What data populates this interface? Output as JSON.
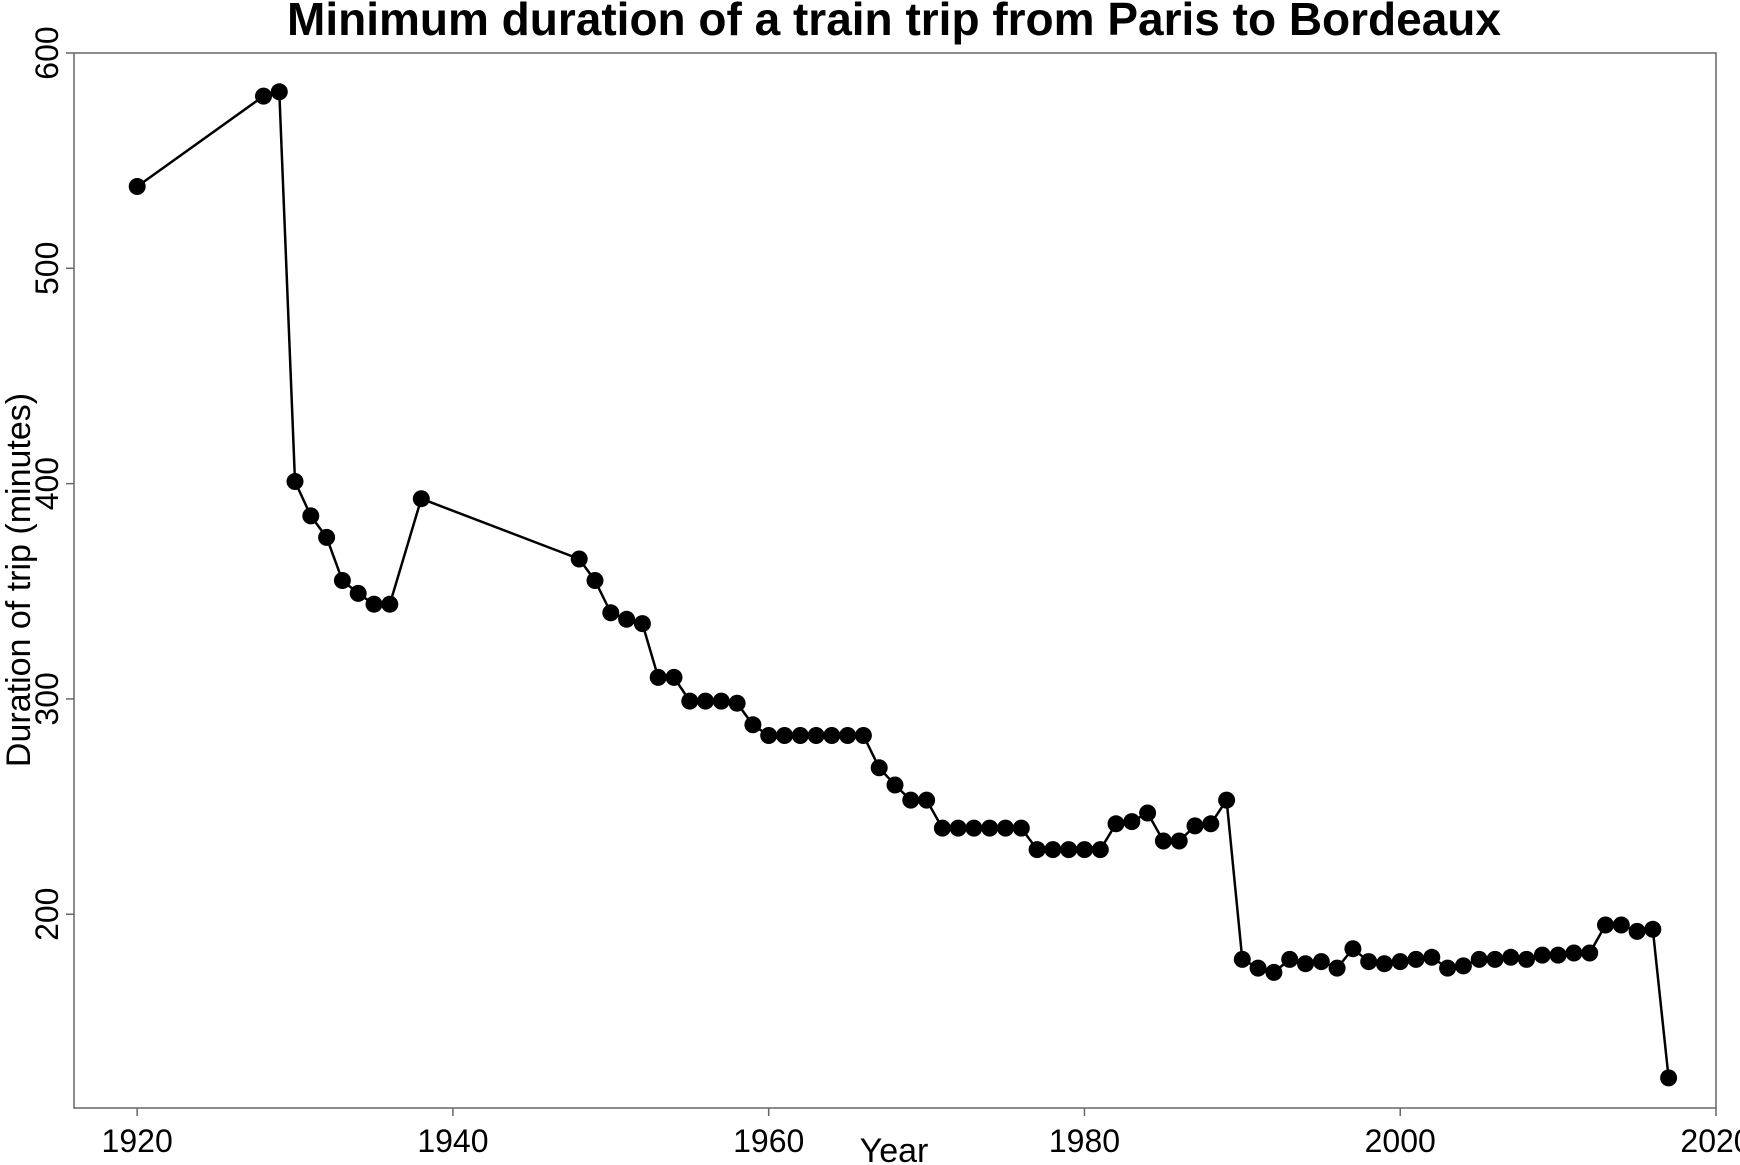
{
  "chart_data": {
    "type": "line",
    "title": "Minimum duration of a train trip from Paris to Bordeaux",
    "xlabel": "Year",
    "ylabel": "Duration of trip (minutes)",
    "xlim": [
      1916,
      2020
    ],
    "ylim": [
      110,
      600
    ],
    "xticks": [
      1920,
      1940,
      1960,
      1980,
      2000,
      2020
    ],
    "yticks": [
      200,
      300,
      400,
      500,
      600
    ],
    "grid": false,
    "legend": "none",
    "line_color": "#000000",
    "marker": "filled-circle",
    "series": [
      {
        "x": [
          1920,
          1928,
          1929,
          1930,
          1931,
          1932,
          1933,
          1934,
          1935,
          1936,
          1938,
          1948,
          1949,
          1950,
          1951,
          1952,
          1953,
          1954,
          1955,
          1956,
          1957,
          1958,
          1959,
          1960,
          1961,
          1962,
          1963,
          1964,
          1965,
          1966,
          1967,
          1968,
          1969,
          1970,
          1971,
          1972,
          1973,
          1974,
          1975,
          1976,
          1977,
          1978,
          1979,
          1980,
          1981,
          1982,
          1983,
          1984,
          1985,
          1986,
          1987,
          1988,
          1989,
          1990,
          1991,
          1992,
          1993,
          1994,
          1995,
          1996,
          1997,
          1998,
          1999,
          2000,
          2001,
          2002,
          2003,
          2004,
          2005,
          2006,
          2007,
          2008,
          2009,
          2010,
          2011,
          2012,
          2013,
          2014,
          2015,
          2016,
          2017
        ],
        "y": [
          538,
          580,
          582,
          401,
          385,
          375,
          355,
          349,
          344,
          344,
          393,
          365,
          355,
          340,
          337,
          335,
          310,
          310,
          299,
          299,
          299,
          298,
          288,
          283,
          283,
          283,
          283,
          283,
          283,
          283,
          268,
          260,
          253,
          253,
          240,
          240,
          240,
          240,
          240,
          240,
          230,
          230,
          230,
          230,
          230,
          242,
          243,
          247,
          234,
          234,
          241,
          242,
          253,
          179,
          175,
          173,
          179,
          177,
          178,
          175,
          184,
          178,
          177,
          178,
          179,
          180,
          175,
          176,
          179,
          179,
          180,
          179,
          181,
          181,
          182,
          182,
          195,
          195,
          192,
          193,
          124
        ]
      }
    ]
  }
}
